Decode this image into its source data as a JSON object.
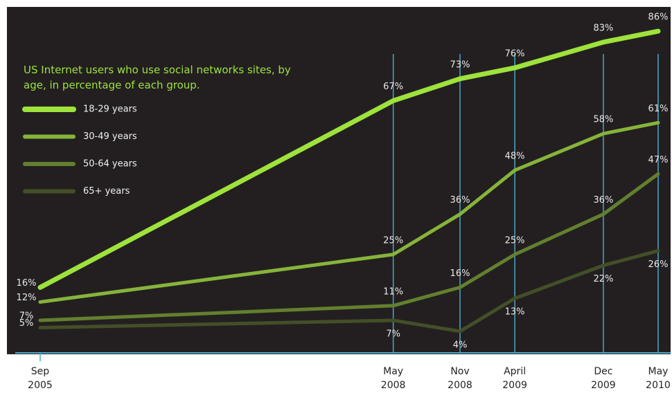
{
  "chart_data": {
    "type": "line",
    "title": "US Internet users who use social networks sites, by age, in percentage of each group.",
    "x": [
      "Sep 2005",
      "May 2008",
      "Nov 2008",
      "April 2009",
      "Dec 2009",
      "May 2010"
    ],
    "ylim": [
      0,
      100
    ],
    "series": [
      {
        "name": "18-29 years",
        "color": "#9ee23c",
        "values": [
          16,
          67,
          73,
          76,
          83,
          86
        ],
        "value_labels": [
          "16%",
          "67%",
          "73%",
          "76%",
          "83%",
          "86%"
        ]
      },
      {
        "name": "30-49 years",
        "color": "#86b43a",
        "values": [
          12,
          25,
          36,
          48,
          58,
          61
        ],
        "value_labels": [
          "12%",
          "25%",
          "36%",
          "48%",
          "58%",
          "61%"
        ]
      },
      {
        "name": "50-64 years",
        "color": "#62802f",
        "values": [
          7,
          11,
          16,
          25,
          36,
          47
        ],
        "value_labels": [
          "7%",
          "11%",
          "16%",
          "25%",
          "36%",
          "47%"
        ]
      },
      {
        "name": "65+ years",
        "color": "#434f27",
        "values": [
          5,
          7,
          4,
          13,
          22,
          26
        ],
        "value_labels": [
          "5%",
          "7%",
          "4%",
          "13%",
          "22%",
          "26%"
        ]
      }
    ]
  }
}
